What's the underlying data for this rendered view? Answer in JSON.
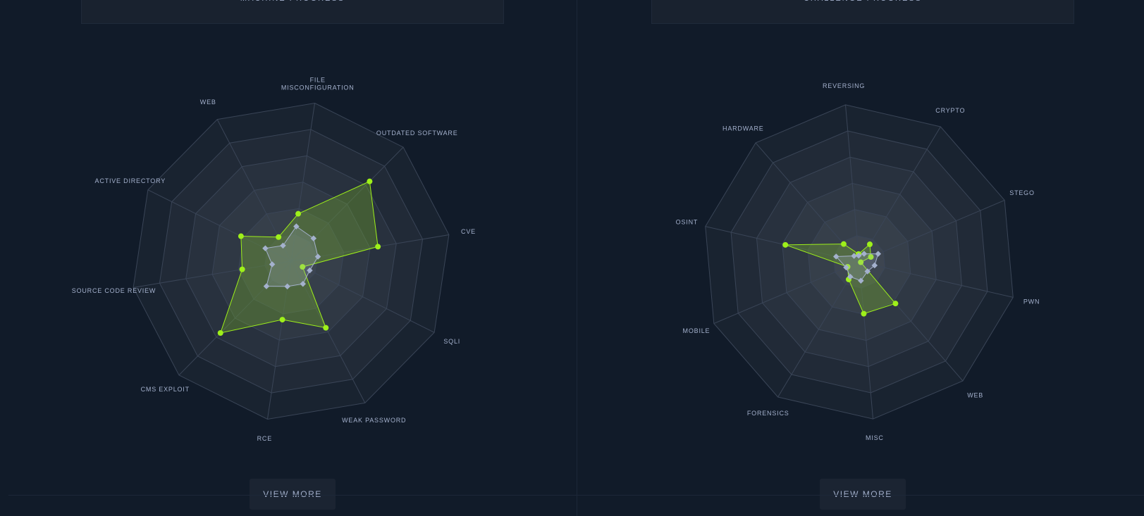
{
  "machine_panel": {
    "title": "MACHINE PROGRESS",
    "view_more_label": "VIEW MORE"
  },
  "challenge_panel": {
    "title": "CHALLENGE PROGRESS",
    "view_more_label": "VIEW MORE"
  },
  "colors": {
    "background": "#111b29",
    "user_series": "#9ef01a",
    "average_series": "#a4b1cd",
    "grid": "#3a4557"
  },
  "chart_data": [
    {
      "type": "radar",
      "rings": 6,
      "max": 100,
      "axes": [
        "FILE\nMISCONFIGURATION",
        "OUTDATED SOFTWARE",
        "CVE",
        "SQLI",
        "WEAK PASSWORD",
        "RCE",
        "CMS EXPLOIT",
        "SOURCE CODE REVIEW",
        "ACTIVE DIRECTORY",
        "WEB"
      ],
      "series": [
        {
          "values": [
            30,
            70,
            55,
            8,
            47,
            37,
            63,
            31,
            35,
            17
          ]
        },
        {
          "values": [
            22,
            20,
            17,
            13,
            16,
            16,
            22,
            12,
            18,
            11
          ]
        }
      ]
    },
    {
      "type": "radar",
      "rings": 6,
      "max": 100,
      "axes": [
        "REVERSING",
        "CRYPTO",
        "STEGO",
        "PWN",
        "WEB",
        "MISC",
        "FORENSICS",
        "MOBILE",
        "OSINT",
        "HARDWARE"
      ],
      "series": [
        {
          "values": [
            5,
            13,
            8,
            1,
            35,
            33,
            13,
            8,
            48,
            15
          ]
        },
        {
          "values": [
            4,
            6,
            13,
            10,
            8,
            12,
            11,
            9,
            15,
            5
          ]
        }
      ]
    }
  ]
}
